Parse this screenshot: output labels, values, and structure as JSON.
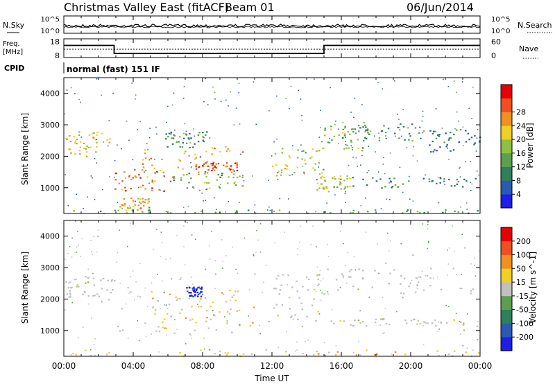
{
  "header": {
    "title": "Christmas Valley East (fitACF)",
    "beam": "Beam 01",
    "date": "06/Jun/2014"
  },
  "noise_panel": {
    "left_label": "N.Sky",
    "right_label": "N.Search",
    "left_ticks": [
      "10^5",
      "10^0"
    ],
    "right_ticks": [
      "10^5",
      "10^0"
    ]
  },
  "freq_panel": {
    "left_label_1": "Freq.",
    "left_label_2": "[MHz]",
    "right_label": "Nave",
    "left_ticks": [
      "18",
      "8"
    ],
    "right_ticks": [
      "60",
      "0"
    ]
  },
  "cpid": {
    "label": "CPID",
    "value": "normal (fast) 151 IF"
  },
  "colors": {
    "scatter_gray": "#c0c0c0",
    "line": "#000000"
  },
  "chart_data": [
    {
      "type": "line",
      "name": "frequency",
      "x": [
        0,
        2.9,
        2.9,
        15.0,
        15.0,
        24.0
      ],
      "y": [
        14.5,
        14.5,
        10.2,
        10.2,
        14.5,
        14.5
      ],
      "ylim": [
        8,
        18
      ],
      "xlim": [
        0,
        24
      ]
    },
    {
      "type": "heatmap",
      "name": "power",
      "ylabel": "Slant Range [km]",
      "yticks": [
        "1000",
        "2000",
        "3000",
        "4000"
      ],
      "ylim": [
        180,
        4500
      ],
      "xlim": [
        0,
        24
      ],
      "colorbar": {
        "label": "Power [dB]",
        "ticks": [
          "4",
          "8",
          "12",
          "16",
          "20",
          "24",
          "28"
        ],
        "range": [
          0,
          32
        ],
        "colors": [
          "#1e1ee6",
          "#2a5ab4",
          "#2e7f5a",
          "#5aa050",
          "#90c040",
          "#f0d020",
          "#f09020",
          "#f05020",
          "#e60000"
        ]
      },
      "bands": [
        {
          "x0": 0.0,
          "x1": 2.9,
          "r0": 2000,
          "r1": 2800,
          "level": 20
        },
        {
          "x0": 2.9,
          "x1": 6.3,
          "r0": 900,
          "r1": 1600,
          "level": 26
        },
        {
          "x0": 3.2,
          "x1": 5.0,
          "r0": 300,
          "r1": 700,
          "level": 22
        },
        {
          "x0": 4.5,
          "x1": 10.5,
          "r0": 1500,
          "r1": 2300,
          "level": 22
        },
        {
          "x0": 6.3,
          "x1": 10.5,
          "r0": 1000,
          "r1": 1500,
          "level": 14
        },
        {
          "x0": 7.5,
          "x1": 10.0,
          "r0": 1550,
          "r1": 1850,
          "level": 28
        },
        {
          "x0": 5.8,
          "x1": 8.2,
          "r0": 2300,
          "r1": 2800,
          "level": 10
        },
        {
          "x0": 12.0,
          "x1": 15.0,
          "r0": 1400,
          "r1": 2300,
          "level": 18
        },
        {
          "x0": 14.5,
          "x1": 16.5,
          "r0": 900,
          "r1": 1400,
          "level": 18
        },
        {
          "x0": 16.0,
          "x1": 24.0,
          "r0": 1000,
          "r1": 1350,
          "level": 8
        },
        {
          "x0": 15.0,
          "x1": 17.5,
          "r0": 2200,
          "r1": 3000,
          "level": 14
        },
        {
          "x0": 16.0,
          "x1": 21.0,
          "r0": 2500,
          "r1": 3100,
          "level": 10
        },
        {
          "x0": 21.0,
          "x1": 24.0,
          "r0": 2100,
          "r1": 2900,
          "level": 8
        },
        {
          "x0": 0.0,
          "x1": 24.0,
          "r0": 200,
          "r1": 320,
          "level": 12
        }
      ]
    },
    {
      "type": "heatmap",
      "name": "velocity",
      "ylabel": "Slant Range [km]",
      "yticks": [
        "1000",
        "2000",
        "3000",
        "4000"
      ],
      "ylim": [
        180,
        4500
      ],
      "xlim": [
        0,
        24
      ],
      "colorbar": {
        "label": "Velocity [m s^-1]",
        "ticks": [
          "200",
          "100",
          "50",
          "15",
          "-15",
          "-50",
          "-100",
          "-200"
        ],
        "colors": [
          "#1e1ee6",
          "#2a5ab4",
          "#2e7f5a",
          "#5aa050",
          "#c0c0c0",
          "#f0d020",
          "#f09020",
          "#f05020",
          "#e60000"
        ]
      },
      "bands": [
        {
          "x0": 0.0,
          "x1": 2.9,
          "r0": 2000,
          "r1": 2800,
          "kind": "gray"
        },
        {
          "x0": 2.9,
          "x1": 10.5,
          "r0": 900,
          "r1": 2300,
          "kind": "gray"
        },
        {
          "x0": 5.0,
          "x1": 11.0,
          "r0": 1000,
          "r1": 2300,
          "kind": "orange"
        },
        {
          "x0": 7.0,
          "x1": 8.0,
          "r0": 2100,
          "r1": 2400,
          "kind": "blue"
        },
        {
          "x0": 12.0,
          "x1": 15.0,
          "r0": 1300,
          "r1": 2800,
          "kind": "gray"
        },
        {
          "x0": 15.0,
          "x1": 24.0,
          "r0": 1150,
          "r1": 1400,
          "kind": "gray"
        },
        {
          "x0": 15.0,
          "x1": 24.0,
          "r0": 2200,
          "r1": 3000,
          "kind": "gray"
        },
        {
          "x0": 0.0,
          "x1": 24.0,
          "r0": 200,
          "r1": 420,
          "kind": "orange"
        }
      ]
    }
  ],
  "x_axis": {
    "label": "Time UT",
    "ticks": [
      "00:00",
      "04:00",
      "08:00",
      "12:00",
      "16:00",
      "20:00",
      "00:00"
    ]
  }
}
